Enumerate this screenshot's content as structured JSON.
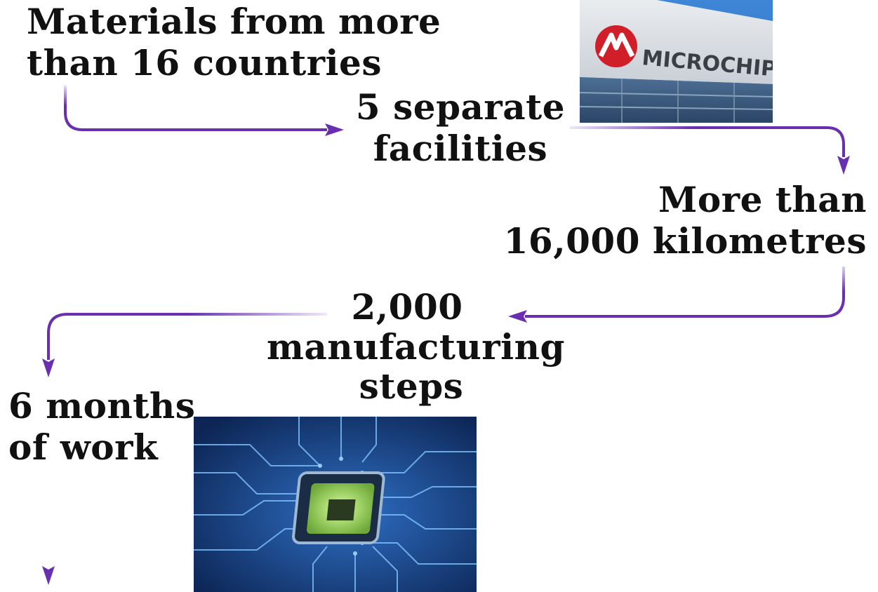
{
  "steps": [
    {
      "lines": [
        "Materials from more",
        "than 16 countries"
      ]
    },
    {
      "lines": [
        "5 separate",
        "facilities"
      ]
    },
    {
      "lines": [
        "More than",
        "16,000 kilometres"
      ]
    },
    {
      "lines": [
        "2,000",
        "manufacturing",
        "steps"
      ]
    },
    {
      "lines": [
        "6 months",
        "of work"
      ]
    }
  ],
  "images": {
    "building_sign": {
      "logo_text": "MICROCHIP"
    },
    "chip": {}
  },
  "colors": {
    "arrow": "#6a2fb0",
    "arrow_fade": "#e8dcf5",
    "text": "#111111"
  }
}
